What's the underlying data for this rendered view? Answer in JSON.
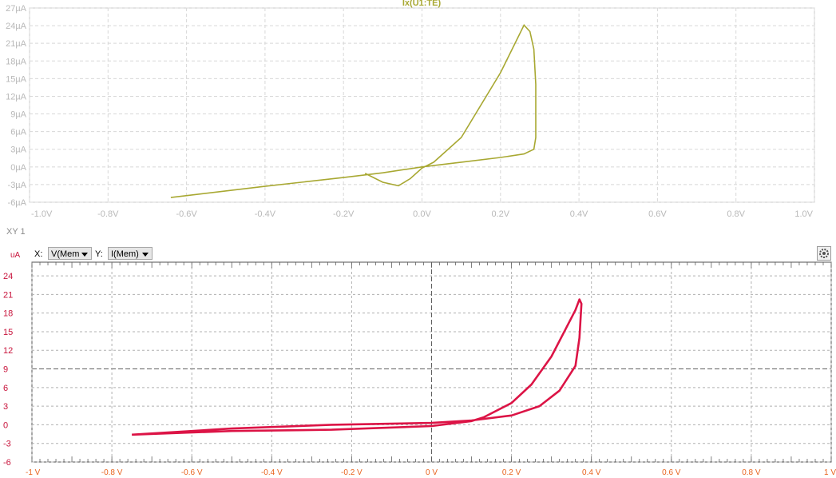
{
  "top_plot": {
    "title": "Ix(U1:TE)",
    "trace_color": "#a8a832",
    "text_color": "#b8b8b8",
    "y_ticks": [
      "27µA",
      "24µA",
      "21µA",
      "18µA",
      "15µA",
      "12µA",
      "9µA",
      "6µA",
      "3µA",
      "0µA",
      "-3µA",
      "-6µA"
    ],
    "x_ticks": [
      "-1.0V",
      "-0.8V",
      "-0.6V",
      "-0.4V",
      "-0.2V",
      "0.0V",
      "0.2V",
      "0.4V",
      "0.6V",
      "0.8V",
      "1.0V"
    ]
  },
  "xy_panel": {
    "header": "XY 1",
    "x_label": "X:",
    "x_select": "V(Mem",
    "y_label": "Y:",
    "y_select": "I(Mem)",
    "unit": "uA",
    "axis_color": "#c8143c",
    "x_tick_color": "#e8641e",
    "trace_color": "#dc1446",
    "y_ticks": [
      "24",
      "21",
      "18",
      "15",
      "12",
      "9",
      "6",
      "3",
      "0",
      "-3",
      "-6"
    ],
    "x_ticks": [
      "-1 V",
      "-0.8 V",
      "-0.6 V",
      "-0.4 V",
      "-0.2 V",
      "0 V",
      "0.2 V",
      "0.4 V",
      "0.6 V",
      "0.8 V",
      "1 V"
    ]
  },
  "chart_data": [
    {
      "type": "line",
      "title": "Ix(U1:TE)",
      "xlabel": "",
      "ylabel": "",
      "xlim": [
        -1.0,
        1.0
      ],
      "ylim": [
        -6,
        27
      ],
      "grid": true,
      "series": [
        {
          "name": "Ix(U1:TE)",
          "x": [
            -0.64,
            -0.4,
            -0.2,
            -0.1,
            0.0,
            0.1,
            0.2,
            0.26,
            0.285,
            0.29,
            0.29,
            0.285,
            0.275,
            0.26,
            0.2,
            0.1,
            0.03,
            0.0,
            -0.03,
            -0.06,
            -0.1,
            -0.145
          ],
          "y": [
            -5.2,
            -3.3,
            -1.8,
            -1.0,
            0.0,
            0.8,
            1.6,
            2.2,
            3.0,
            5.0,
            14,
            20,
            23,
            24.1,
            16,
            5,
            0.8,
            -0.2,
            -2.0,
            -3.2,
            -2.6,
            -1.1
          ]
        }
      ]
    },
    {
      "type": "line",
      "title": "XY 1",
      "xlabel": "V(Mem",
      "ylabel": "uA",
      "xlim": [
        -1.0,
        1.0
      ],
      "ylim": [
        -6,
        24
      ],
      "grid": true,
      "series": [
        {
          "name": "I(Mem)",
          "x": [
            -0.75,
            -0.5,
            -0.25,
            0.0,
            0.1,
            0.2,
            0.27,
            0.32,
            0.36,
            0.37,
            0.375,
            0.37,
            0.36,
            0.34,
            0.3,
            0.25,
            0.2,
            0.13,
            0.1,
            0.0,
            -0.25,
            -0.5,
            -0.75
          ],
          "y": [
            -1.6,
            -0.6,
            0.0,
            0.3,
            0.7,
            1.5,
            3.0,
            5.5,
            9.5,
            14.0,
            19.5,
            20.2,
            18.5,
            16.0,
            11.0,
            6.5,
            3.5,
            1.2,
            0.6,
            -0.2,
            -0.8,
            -1.0,
            -1.6
          ]
        }
      ]
    }
  ]
}
